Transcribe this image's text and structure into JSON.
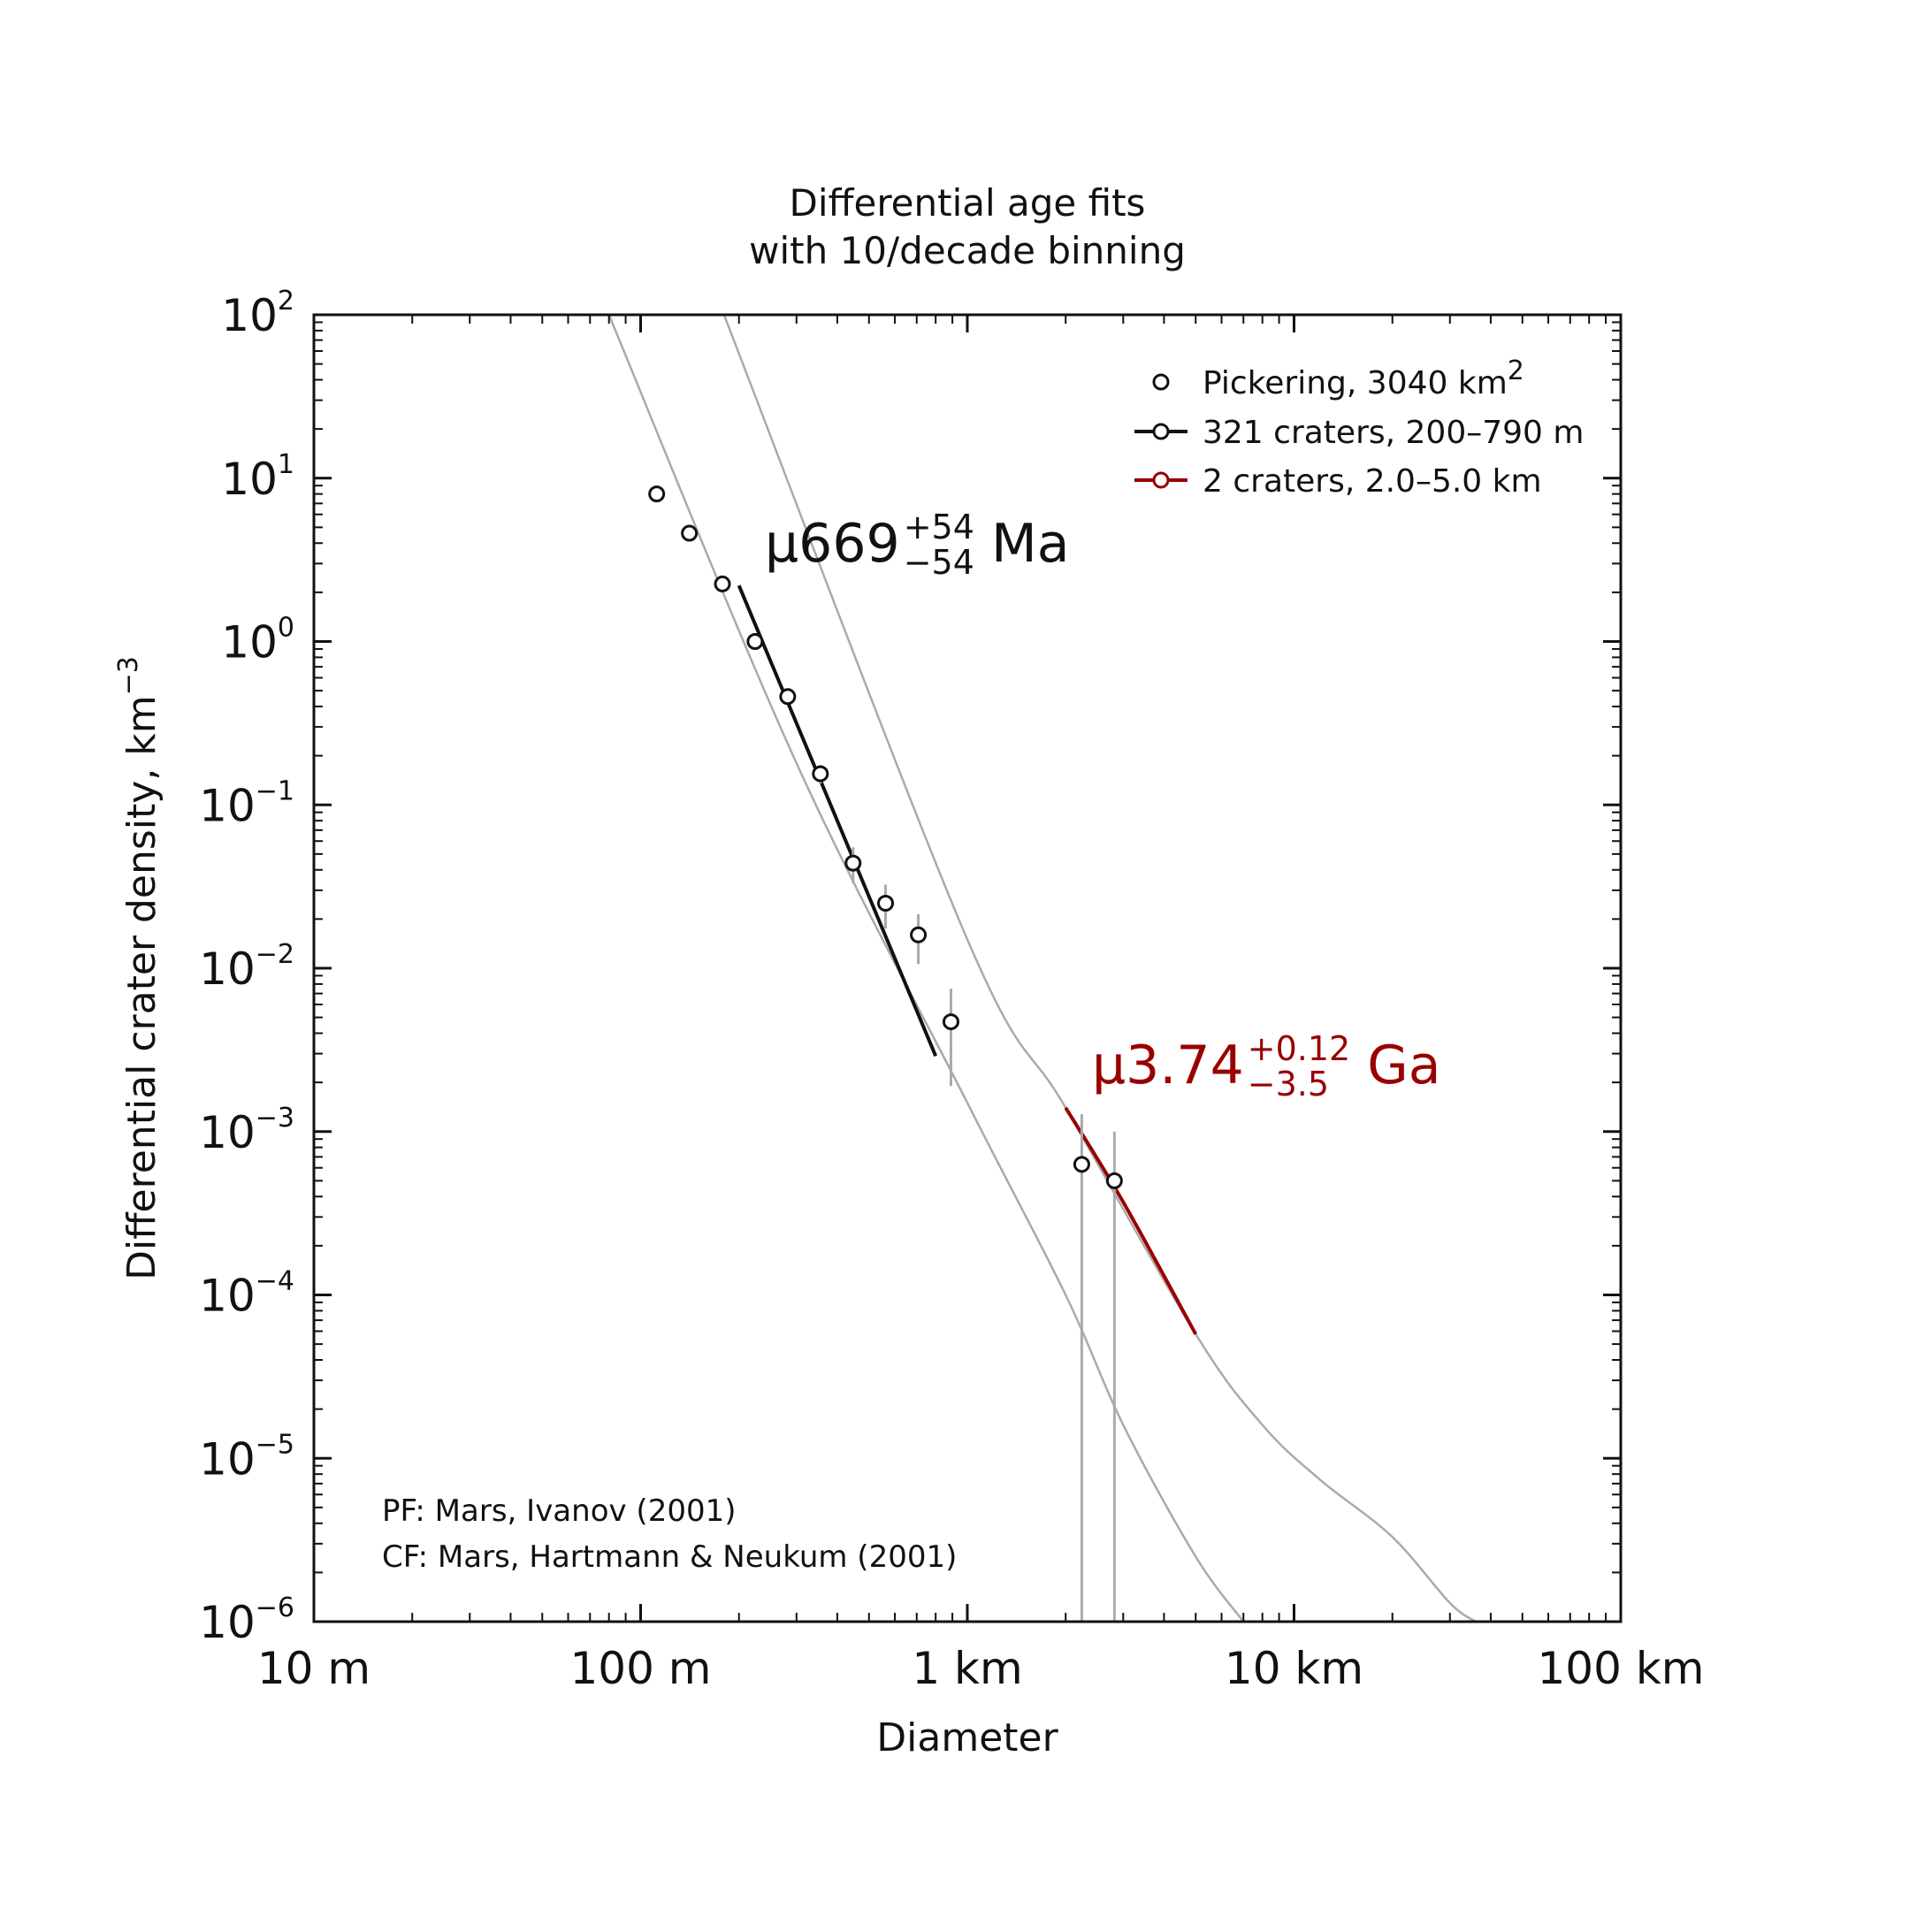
{
  "chart_data": {
    "type": "scatter",
    "title": [
      "Differential age fits",
      "with 10/decade binning"
    ],
    "xlabel": "Diameter",
    "ylabel": "Differential crater density, km",
    "ylabel_exponent": "−3",
    "x_scale": "log",
    "y_scale": "log",
    "xlim_km": [
      0.01,
      100
    ],
    "ylim": [
      1e-06,
      100
    ],
    "x_ticks": [
      {
        "value": 0.01,
        "label": "10 m"
      },
      {
        "value": 0.1,
        "label": "100 m"
      },
      {
        "value": 1,
        "label": "1 km"
      },
      {
        "value": 10,
        "label": "10 km"
      },
      {
        "value": 100,
        "label": "100 km"
      }
    ],
    "y_ticks": [
      {
        "value": 100,
        "base": "10",
        "exp": "2"
      },
      {
        "value": 10,
        "base": "10",
        "exp": "1"
      },
      {
        "value": 1,
        "base": "10",
        "exp": "0"
      },
      {
        "value": 0.1,
        "base": "10",
        "exp": "−1"
      },
      {
        "value": 0.01,
        "base": "10",
        "exp": "−2"
      },
      {
        "value": 0.001,
        "base": "10",
        "exp": "−3"
      },
      {
        "value": 0.0001,
        "base": "10",
        "exp": "−4"
      },
      {
        "value": 1e-05,
        "base": "10",
        "exp": "−5"
      },
      {
        "value": 1e-06,
        "base": "10",
        "exp": "−6"
      }
    ],
    "grid": false,
    "legend_position": "top-right",
    "legend": [
      {
        "marker": "circle",
        "color": "#111111",
        "label": "Pickering, 3040 km",
        "label_sup": "2"
      },
      {
        "marker": "line-circle",
        "color": "#111111",
        "label": "321 craters, 200–790 m",
        "label_sup": ""
      },
      {
        "marker": "line-circle",
        "color": "#990000",
        "label": "2 craters, 2.0–5.0 km",
        "label_sup": ""
      }
    ],
    "points": [
      {
        "d": 0.112,
        "n": 8.0,
        "err_lo": 7.6,
        "err_hi": 8.4
      },
      {
        "d": 0.141,
        "n": 4.6,
        "err_lo": 4.3,
        "err_hi": 4.9
      },
      {
        "d": 0.178,
        "n": 2.25,
        "err_lo": 2.1,
        "err_hi": 2.4
      },
      {
        "d": 0.224,
        "n": 1.0,
        "err_lo": 0.92,
        "err_hi": 1.08
      },
      {
        "d": 0.282,
        "n": 0.46,
        "err_lo": 0.41,
        "err_hi": 0.51
      },
      {
        "d": 0.355,
        "n": 0.155,
        "err_lo": 0.135,
        "err_hi": 0.175
      },
      {
        "d": 0.447,
        "n": 0.044,
        "err_lo": 0.033,
        "err_hi": 0.055
      },
      {
        "d": 0.562,
        "n": 0.025,
        "err_lo": 0.0175,
        "err_hi": 0.0325
      },
      {
        "d": 0.708,
        "n": 0.016,
        "err_lo": 0.0106,
        "err_hi": 0.0214
      },
      {
        "d": 0.891,
        "n": 0.0047,
        "err_lo": 0.0019,
        "err_hi": 0.0075
      },
      {
        "d": 2.24,
        "n": 0.00063,
        "err_lo": 1e-06,
        "err_hi": 0.00128
      },
      {
        "d": 2.82,
        "n": 0.0005,
        "err_lo": 1e-06,
        "err_hi": 0.001
      }
    ],
    "fits": [
      {
        "color": "#111111",
        "d": [
          0.2,
          0.8
        ],
        "n": [
          2.2,
          0.0029
        ],
        "label": "μ669",
        "sup": "+54",
        "sub": "−54",
        "unit": " Ma"
      },
      {
        "color": "#990000",
        "d": [
          2.0,
          3.0,
          5.0
        ],
        "n": [
          0.0014,
          0.00037,
          5.75e-05
        ],
        "label": "μ3.74",
        "sup": "+0.12",
        "sub": "−3.5",
        "unit": " Ga"
      }
    ],
    "isochrons": [
      {
        "d": [
          0.08,
          0.3,
          1.0,
          2.0,
          3.0,
          5.0,
          7.0
        ],
        "n": [
          100,
          0.18,
          0.0015,
          0.0001,
          1.6e-05,
          2.5e-06,
          1e-06
        ]
      },
      {
        "d": [
          0.18,
          1.0,
          2.0,
          5.0,
          8.0,
          12.0,
          20.0,
          30.0,
          36.0
        ],
        "n": [
          100,
          0.015,
          0.0014,
          5.75e-05,
          1.6e-05,
          7.4e-06,
          3.3e-06,
          1.3e-06,
          1e-06
        ]
      }
    ],
    "notes": [
      "PF: Mars, Ivanov (2001)",
      "CF: Mars, Hartmann & Neukum (2001)"
    ]
  }
}
